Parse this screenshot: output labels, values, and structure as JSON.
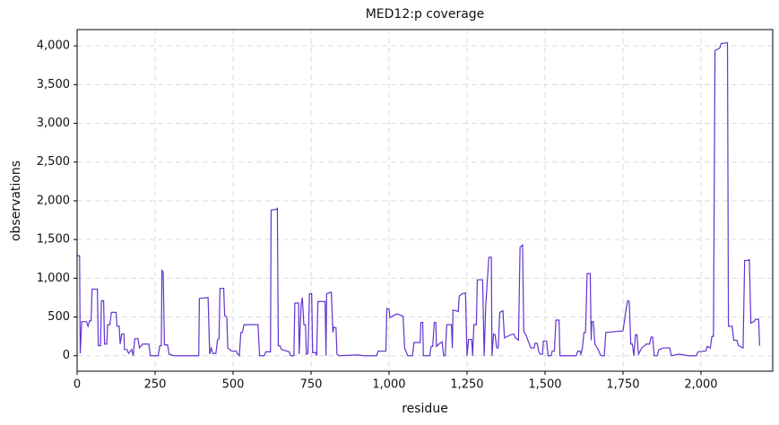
{
  "chart_data": {
    "type": "line",
    "title": "MED12:p coverage",
    "xlabel": "residue",
    "ylabel": "observations",
    "xlim": [
      0,
      2230
    ],
    "ylim": [
      -200,
      4210
    ],
    "xticks": [
      0,
      250,
      500,
      750,
      {
        "value": 1000,
        "label": "1,000"
      },
      {
        "value": 1250,
        "label": "1,250"
      },
      {
        "value": 1500,
        "label": "1,500"
      },
      {
        "value": 1750,
        "label": "1,750"
      },
      {
        "value": 2000,
        "label": "2,000"
      }
    ],
    "yticks": [
      0,
      500,
      {
        "value": 1000,
        "label": "1,000"
      },
      {
        "value": 1500,
        "label": "1,500"
      },
      {
        "value": 2000,
        "label": "2,000"
      },
      {
        "value": 2500,
        "label": "2,500"
      },
      {
        "value": 3000,
        "label": "3,000"
      },
      {
        "value": 3500,
        "label": "3,500"
      },
      {
        "value": 4000,
        "label": "4,000"
      }
    ],
    "grid": true,
    "series": [
      {
        "name": "coverage",
        "color": "#6233d0",
        "x": [
          0,
          8,
          10,
          15,
          30,
          35,
          40,
          45,
          48,
          65,
          68,
          75,
          78,
          85,
          88,
          95,
          98,
          105,
          110,
          125,
          128,
          135,
          138,
          143,
          150,
          152,
          160,
          165,
          175,
          180,
          185,
          195,
          200,
          210,
          230,
          235,
          260,
          265,
          270,
          272,
          276,
          280,
          290,
          295,
          310,
          390,
          392,
          420,
          425,
          430,
          435,
          445,
          450,
          455,
          458,
          470,
          473,
          480,
          483,
          495,
          510,
          515,
          520,
          525,
          530,
          535,
          580,
          585,
          600,
          605,
          620,
          622,
          640,
          642,
          645,
          650,
          655,
          680,
          685,
          695,
          698,
          710,
          712,
          718,
          722,
          727,
          732,
          735,
          740,
          745,
          752,
          755,
          765,
          768,
          772,
          795,
          798,
          800,
          815,
          820,
          823,
          830,
          833,
          840,
          900,
          920,
          960,
          965,
          990,
          993,
          1000,
          1003,
          1015,
          1025,
          1045,
          1050,
          1060,
          1075,
          1080,
          1100,
          1102,
          1108,
          1110,
          1130,
          1135,
          1140,
          1145,
          1150,
          1152,
          1160,
          1170,
          1175,
          1180,
          1185,
          1200,
          1203,
          1205,
          1215,
          1222,
          1225,
          1235,
          1245,
          1250,
          1255,
          1265,
          1268,
          1272,
          1280,
          1283,
          1300,
          1305,
          1310,
          1320,
          1328,
          1330,
          1335,
          1340,
          1345,
          1350,
          1355,
          1365,
          1370,
          1390,
          1400,
          1405,
          1415,
          1420,
          1428,
          1432,
          1440,
          1445,
          1450,
          1455,
          1465,
          1468,
          1475,
          1480,
          1485,
          1492,
          1495,
          1505,
          1510,
          1520,
          1523,
          1530,
          1535,
          1545,
          1548,
          1600,
          1605,
          1612,
          1615,
          1620,
          1625,
          1630,
          1635,
          1645,
          1648,
          1650,
          1655,
          1660,
          1670,
          1678,
          1682,
          1690,
          1695,
          1750,
          1760,
          1765,
          1770,
          1775,
          1780,
          1785,
          1790,
          1795,
          1798,
          1800,
          1810,
          1825,
          1835,
          1840,
          1845,
          1850,
          1860,
          1865,
          1880,
          1900,
          1905,
          1930,
          1960,
          1985,
          1990,
          2010,
          2015,
          2020,
          2030,
          2035,
          2040,
          2045,
          2060,
          2065,
          2085,
          2088,
          2100,
          2105,
          2115,
          2120,
          2135,
          2140,
          2150,
          2155,
          2160,
          2170,
          2175,
          2185,
          2188
        ],
        "values": [
          1290,
          1290,
          30,
          440,
          440,
          380,
          450,
          450,
          860,
          860,
          130,
          130,
          710,
          710,
          150,
          150,
          400,
          400,
          560,
          560,
          380,
          380,
          150,
          280,
          280,
          80,
          80,
          30,
          80,
          0,
          220,
          220,
          100,
          150,
          150,
          0,
          0,
          130,
          130,
          1100,
          1080,
          140,
          140,
          20,
          0,
          0,
          740,
          750,
          20,
          100,
          30,
          30,
          200,
          220,
          870,
          870,
          520,
          500,
          100,
          60,
          60,
          20,
          0,
          300,
          300,
          400,
          400,
          0,
          0,
          50,
          50,
          1880,
          1890,
          1910,
          130,
          130,
          80,
          50,
          0,
          0,
          680,
          680,
          20,
          650,
          750,
          400,
          400,
          20,
          30,
          800,
          800,
          40,
          40,
          0,
          700,
          700,
          0,
          800,
          820,
          300,
          370,
          360,
          20,
          0,
          10,
          0,
          0,
          60,
          60,
          610,
          600,
          490,
          520,
          540,
          510,
          100,
          0,
          0,
          170,
          170,
          430,
          430,
          0,
          0,
          120,
          120,
          430,
          430,
          120,
          150,
          180,
          0,
          0,
          400,
          400,
          100,
          590,
          580,
          570,
          770,
          800,
          810,
          0,
          210,
          210,
          0,
          400,
          400,
          980,
          980,
          0,
          650,
          1270,
          1270,
          0,
          280,
          270,
          100,
          100,
          560,
          580,
          230,
          270,
          280,
          230,
          200,
          1400,
          1430,
          310,
          260,
          200,
          150,
          100,
          100,
          160,
          160,
          50,
          20,
          20,
          190,
          190,
          0,
          0,
          60,
          60,
          460,
          460,
          0,
          0,
          60,
          60,
          20,
          100,
          300,
          300,
          1060,
          1060,
          200,
          440,
          440,
          150,
          80,
          10,
          0,
          0,
          300,
          320,
          600,
          710,
          700,
          150,
          150,
          0,
          270,
          270,
          100,
          20,
          100,
          150,
          150,
          240,
          240,
          0,
          0,
          80,
          100,
          100,
          0,
          20,
          0,
          0,
          50,
          60,
          60,
          120,
          100,
          250,
          250,
          3940,
          3970,
          4030,
          4040,
          380,
          380,
          200,
          200,
          130,
          100,
          1230,
          1230,
          1240,
          420,
          440,
          470,
          470,
          130
        ]
      }
    ]
  }
}
